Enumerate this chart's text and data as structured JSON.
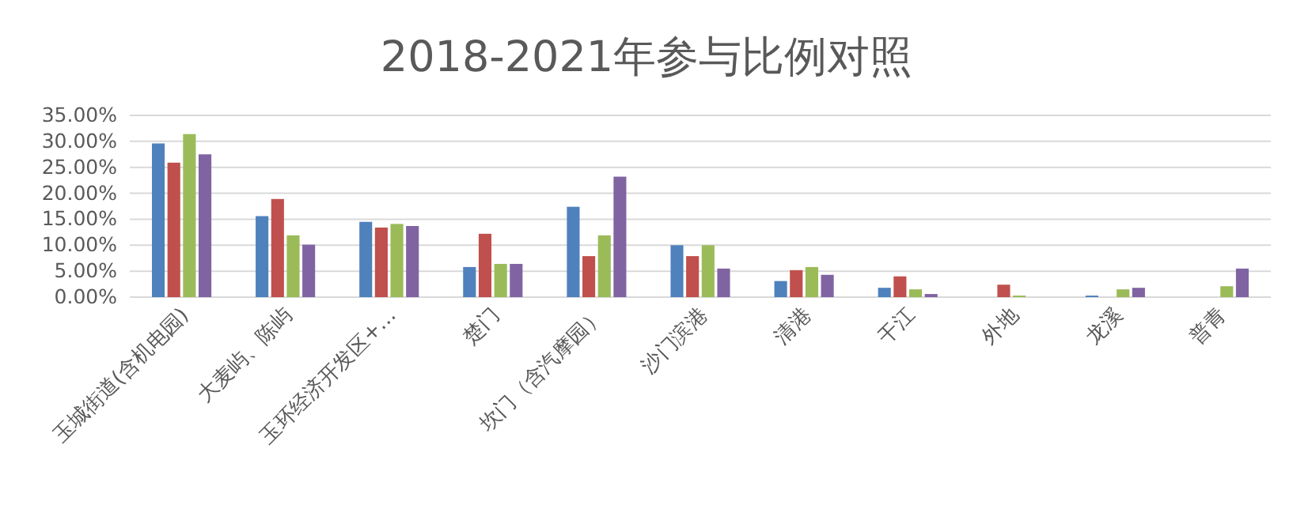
{
  "chart_data": {
    "type": "bar",
    "title": "2018-2021年参与比例对照",
    "categories": [
      "玉城街道(含机电园)",
      "大麦屿、陈屿",
      "玉环经济开发区+…",
      "楚门",
      "坎门（含汽摩园）",
      "沙门滨港",
      "清港",
      "干江",
      "外地",
      "龙溪",
      "普青"
    ],
    "series": [
      {
        "color": "#4f81bd",
        "values": [
          29.6,
          15.6,
          14.5,
          5.8,
          17.4,
          10.0,
          3.1,
          1.8,
          null,
          0.3,
          null
        ]
      },
      {
        "color": "#c0504d",
        "values": [
          25.9,
          18.9,
          13.4,
          12.2,
          7.9,
          7.9,
          5.2,
          4.0,
          2.4,
          null,
          null
        ]
      },
      {
        "color": "#9bbb59",
        "values": [
          31.4,
          11.9,
          14.1,
          6.4,
          11.9,
          10.0,
          5.8,
          1.5,
          0.3,
          1.5,
          2.1
        ]
      },
      {
        "color": "#8064a2",
        "values": [
          27.5,
          10.1,
          13.7,
          6.4,
          23.2,
          5.5,
          4.3,
          0.6,
          null,
          1.8,
          5.5
        ]
      }
    ],
    "ylim": [
      0,
      35
    ],
    "yticks": [
      {
        "value": 0,
        "label": "0.00%"
      },
      {
        "value": 5,
        "label": "5.00%"
      },
      {
        "value": 10,
        "label": "10.00%"
      },
      {
        "value": 15,
        "label": "15.00%"
      },
      {
        "value": 20,
        "label": "20.00%"
      },
      {
        "value": 25,
        "label": "25.00%"
      },
      {
        "value": 30,
        "label": "30.00%"
      },
      {
        "value": 35,
        "label": "35.00%"
      }
    ],
    "grid": "y"
  }
}
